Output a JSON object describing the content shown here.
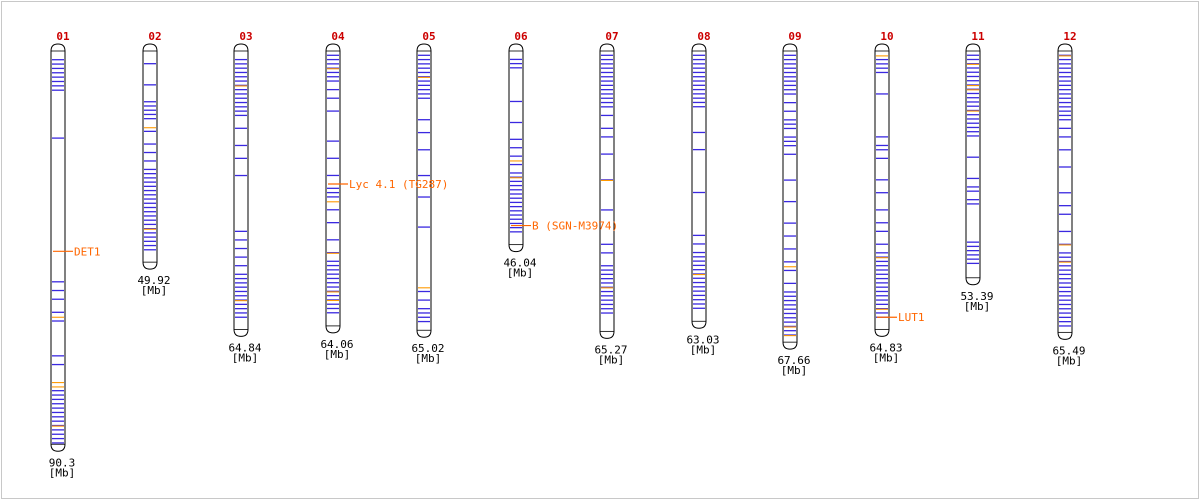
{
  "colors": {
    "chromosome_number": "#cc0000",
    "band_primary": "#3a28e0",
    "band_secondary": "#ff9900",
    "marker": "#ff6600",
    "outline": "#000000",
    "border": "#c8c8c8"
  },
  "unit": "[Mb]",
  "chromosomes": [
    {
      "id": "01",
      "length_label": "90.3",
      "length": 90.3,
      "bands_blue": [
        2,
        3,
        4,
        5,
        6,
        7,
        8,
        9,
        20,
        53,
        55,
        57,
        60,
        62,
        70,
        72,
        78,
        79,
        80,
        81,
        82,
        83,
        84,
        85,
        86,
        87,
        88,
        89,
        90
      ],
      "bands_orange": [
        61,
        76,
        77,
        86
      ]
    },
    {
      "id": "02",
      "length_label": "49.92",
      "length": 49.92,
      "bands_blue": [
        3,
        8,
        12,
        13,
        14,
        15,
        16,
        19,
        22,
        24,
        26,
        28,
        29,
        30,
        31,
        32,
        33,
        34,
        35,
        36,
        37,
        38,
        39,
        40,
        41,
        42,
        43,
        44,
        45,
        46,
        47
      ],
      "bands_orange": [
        18,
        42
      ]
    },
    {
      "id": "03",
      "length_label": "64.84",
      "length": 64.84,
      "bands_blue": [
        2,
        3,
        4,
        5,
        6,
        7,
        8,
        9,
        10,
        11,
        12,
        13,
        14,
        15,
        18,
        22,
        25,
        29,
        42,
        44,
        46,
        48,
        50,
        52,
        53,
        54,
        55,
        56,
        57,
        58,
        59,
        60,
        61,
        62
      ],
      "bands_orange": [
        8,
        58
      ]
    },
    {
      "id": "04",
      "length_label": "64.06",
      "length": 64.06,
      "bands_blue": [
        1,
        2,
        3,
        4,
        5,
        6,
        7,
        9,
        11,
        14,
        21,
        25,
        29,
        32,
        33,
        34,
        37,
        40,
        44,
        47,
        49,
        50,
        51,
        52,
        53,
        54,
        55,
        56,
        57,
        58,
        59,
        60,
        61
      ],
      "bands_orange": [
        4,
        35,
        47,
        56,
        58
      ]
    },
    {
      "id": "05",
      "length_label": "65.02",
      "length": 65.02,
      "bands_blue": [
        1,
        2,
        3,
        4,
        5,
        6,
        7,
        8,
        9,
        10,
        11,
        16,
        19,
        23,
        29,
        34,
        41,
        56,
        58,
        60,
        61,
        62,
        63
      ],
      "bands_orange": [
        6,
        55
      ]
    },
    {
      "id": "06",
      "length_label": "46.04",
      "length": 46.04,
      "bands_blue": [
        2,
        3,
        4,
        12,
        17,
        21,
        23,
        25,
        27,
        29,
        30,
        31,
        32,
        33,
        34,
        35,
        36,
        37,
        38,
        39,
        40,
        41,
        42,
        43
      ],
      "bands_orange": [
        26,
        30
      ]
    },
    {
      "id": "07",
      "length_label": "65.27",
      "length": 65.27,
      "bands_blue": [
        1,
        2,
        3,
        4,
        5,
        6,
        7,
        8,
        9,
        10,
        11,
        12,
        13,
        15,
        18,
        20,
        24,
        30,
        37,
        45,
        47,
        50,
        51,
        52,
        53,
        54,
        55,
        56,
        57,
        58,
        59,
        60,
        61
      ],
      "bands_orange": [
        30,
        55
      ]
    },
    {
      "id": "08",
      "length_label": "63.03",
      "length": 63.03,
      "bands_blue": [
        1,
        2,
        3,
        4,
        5,
        6,
        7,
        8,
        9,
        10,
        11,
        12,
        13,
        19,
        23,
        33,
        43,
        45,
        47,
        48,
        49,
        50,
        51,
        52,
        53,
        54,
        55,
        56,
        57,
        58,
        59,
        60
      ],
      "bands_orange": [
        52
      ]
    },
    {
      "id": "09",
      "length_label": "67.66",
      "length": 67.66,
      "bands_blue": [
        1,
        2,
        3,
        4,
        5,
        6,
        7,
        8,
        9,
        10,
        12,
        14,
        16,
        17,
        18,
        20,
        21,
        22,
        24,
        30,
        35,
        40,
        43,
        46,
        49,
        51,
        54,
        56,
        57,
        58,
        59,
        60,
        61,
        62,
        63,
        64,
        65,
        66
      ],
      "bands_orange": [
        50,
        64,
        66
      ]
    },
    {
      "id": "10",
      "length_label": "64.83",
      "length": 64.83,
      "bands_blue": [
        2,
        3,
        4,
        5,
        10,
        20,
        22,
        23,
        25,
        30,
        33,
        37,
        40,
        42,
        45,
        47,
        48,
        49,
        50,
        51,
        52,
        53,
        54,
        55,
        56,
        57,
        58,
        59,
        60,
        61,
        62
      ],
      "bands_orange": [
        1,
        48,
        60
      ]
    },
    {
      "id": "11",
      "length_label": "53.39",
      "length": 53.39,
      "bands_blue": [
        1,
        2,
        3,
        4,
        5,
        6,
        7,
        8,
        9,
        10,
        11,
        12,
        13,
        14,
        15,
        16,
        17,
        18,
        19,
        20,
        25,
        30,
        32,
        33,
        35,
        36,
        45,
        46,
        47,
        48,
        49,
        50
      ],
      "bands_orange": [
        3,
        8,
        9,
        14
      ]
    },
    {
      "id": "12",
      "length_label": "65.49",
      "length": 65.49,
      "bands_blue": [
        1,
        2,
        3,
        4,
        5,
        6,
        7,
        8,
        9,
        10,
        11,
        12,
        13,
        14,
        15,
        16,
        18,
        20,
        23,
        27,
        33,
        36,
        38,
        42,
        45,
        47,
        48,
        49,
        50,
        51,
        52,
        53,
        54,
        55,
        56,
        57,
        58,
        59,
        60,
        61,
        62,
        63,
        64
      ],
      "bands_orange": [
        1,
        45,
        49
      ]
    }
  ],
  "markers": [
    {
      "chromosome": "01",
      "position": 46.0,
      "label": "DET1"
    },
    {
      "chromosome": "04",
      "position": 31.0,
      "label": "Lyc 4.1 (TG287)"
    },
    {
      "chromosome": "06",
      "position": 41.5,
      "label": "B (SGN-M3974)"
    },
    {
      "chromosome": "10",
      "position": 62.0,
      "label": "LUT1"
    }
  ]
}
